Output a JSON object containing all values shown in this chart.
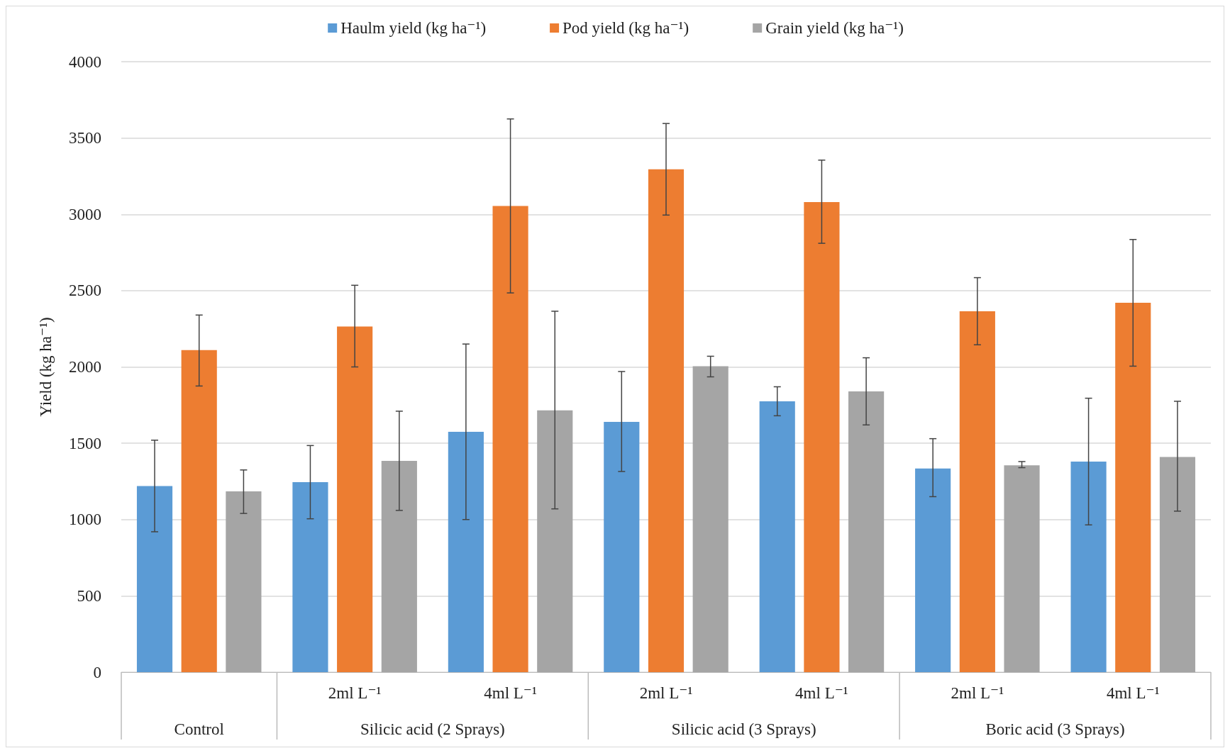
{
  "chart_data": {
    "type": "bar",
    "ylabel": "Yield (kg ha⁻¹)",
    "categories": [
      null,
      "2ml L⁻¹",
      "4ml L⁻¹",
      "2ml L⁻¹",
      "4ml L⁻¹",
      "2ml L⁻¹",
      "4ml L⁻¹"
    ],
    "annotations": [
      "Control",
      "Silicic acid (2 Sprays)",
      "Silicic acid (3 Sprays)",
      "Boric acid (3 Sprays)"
    ],
    "series": [
      {
        "name": "Haulm yield (kg ha⁻¹)",
        "color": "#5b9bd5",
        "values": [
          1220,
          1245,
          1575,
          1640,
          1775,
          1335,
          1380
        ],
        "errors": [
          [
            920,
            1520
          ],
          [
            1005,
            1485
          ],
          [
            1000,
            2150
          ],
          [
            1315,
            1970
          ],
          [
            1680,
            1870
          ],
          [
            1150,
            1530
          ],
          [
            965,
            1795
          ]
        ]
      },
      {
        "name": "Pod yield (kg ha⁻¹)",
        "color": "#ed7d31",
        "values": [
          2110,
          2265,
          3055,
          3295,
          3080,
          2365,
          2420
        ],
        "errors": [
          [
            1875,
            2340
          ],
          [
            2000,
            2535
          ],
          [
            2485,
            3625
          ],
          [
            2995,
            3595
          ],
          [
            2810,
            3355
          ],
          [
            2145,
            2585
          ],
          [
            2005,
            2835
          ]
        ]
      },
      {
        "name": "Grain yield (kg ha⁻¹)",
        "color": "#a5a5a5",
        "values": [
          1185,
          1385,
          1715,
          2005,
          1840,
          1355,
          1410
        ],
        "errors": [
          [
            1040,
            1325
          ],
          [
            1060,
            1710
          ],
          [
            1070,
            2365
          ],
          [
            1935,
            2070
          ],
          [
            1620,
            2060
          ],
          [
            1340,
            1380
          ],
          [
            1055,
            1775
          ]
        ]
      }
    ],
    "ylim": [
      0,
      4000
    ],
    "yticks": [
      0,
      500,
      1000,
      1500,
      2000,
      2500,
      3000,
      3500,
      4000
    ],
    "grid": "y",
    "legend": "top"
  }
}
